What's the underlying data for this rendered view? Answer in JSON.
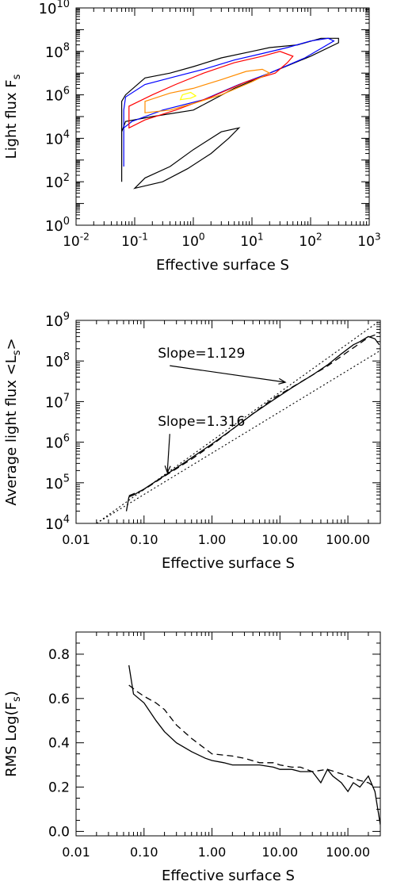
{
  "chart_data": [
    {
      "type": "contour",
      "xlabel": "Effective surface S",
      "ylabel": "Light flux F",
      "ylabel_sub": "s",
      "x_scale": "log",
      "y_scale": "log",
      "xlim": [
        0.01,
        1000
      ],
      "ylim": [
        1,
        10000000000
      ],
      "x_ticks": [
        {
          "v": 0.01,
          "base": "10",
          "exp": "-2"
        },
        {
          "v": 0.1,
          "base": "10",
          "exp": "-1"
        },
        {
          "v": 1,
          "base": "10",
          "exp": "0"
        },
        {
          "v": 10,
          "base": "10",
          "exp": "1"
        },
        {
          "v": 100,
          "base": "10",
          "exp": "2"
        },
        {
          "v": 1000,
          "base": "10",
          "exp": "3"
        }
      ],
      "y_ticks": [
        {
          "v": 1,
          "base": "10",
          "exp": "0"
        },
        {
          "v": 100,
          "base": "10",
          "exp": "2"
        },
        {
          "v": 10000,
          "base": "10",
          "exp": "4"
        },
        {
          "v": 1000000,
          "base": "10",
          "exp": "6"
        },
        {
          "v": 100000000,
          "base": "10",
          "exp": "8"
        },
        {
          "v": 10000000000,
          "base": "10",
          "exp": "10"
        }
      ],
      "contours": [
        {
          "level": "outer",
          "color": "#000000",
          "points": [
            [
              0.06,
              100
            ],
            [
              0.06,
              20000
            ],
            [
              0.07,
              60000
            ],
            [
              0.2,
              100000
            ],
            [
              1,
              200000
            ],
            [
              5,
              2000000
            ],
            [
              20,
              10000000
            ],
            [
              100,
              60000000
            ],
            [
              300,
              250000000
            ],
            [
              300,
              400000000
            ],
            [
              150,
              400000000
            ],
            [
              60,
              200000000
            ],
            [
              20,
              150000000
            ],
            [
              10,
              100000000
            ],
            [
              3,
              50000000
            ],
            [
              1,
              20000000
            ],
            [
              0.4,
              10000000
            ],
            [
              0.15,
              6000000
            ],
            [
              0.07,
              1000000
            ],
            [
              0.06,
              500000
            ]
          ]
        },
        {
          "level": "outer-noise",
          "color": "#000000",
          "points": [
            [
              0.1,
              50
            ],
            [
              0.3,
              100
            ],
            [
              0.8,
              400
            ],
            [
              2,
              2000
            ],
            [
              4,
              10000
            ],
            [
              6,
              30000
            ],
            [
              3,
              20000
            ],
            [
              1,
              3000
            ],
            [
              0.4,
              500
            ],
            [
              0.15,
              150
            ]
          ]
        },
        {
          "level": "mid",
          "color": "#0000ff",
          "points": [
            [
              0.065,
              500
            ],
            [
              0.065,
              30000
            ],
            [
              0.09,
              60000
            ],
            [
              0.3,
              200000
            ],
            [
              1.5,
              600000
            ],
            [
              6,
              3000000
            ],
            [
              20,
              10000000
            ],
            [
              80,
              50000000
            ],
            [
              250,
              300000000
            ],
            [
              200,
              400000000
            ],
            [
              100,
              300000000
            ],
            [
              40,
              150000000
            ],
            [
              15,
              80000000
            ],
            [
              5,
              40000000
            ],
            [
              1.5,
              15000000
            ],
            [
              0.5,
              7000000
            ],
            [
              0.15,
              3000000
            ],
            [
              0.07,
              800000
            ],
            [
              0.065,
              200000
            ]
          ]
        },
        {
          "level": "mid-inner",
          "color": "#ff0000",
          "points": [
            [
              0.08,
              30000
            ],
            [
              0.15,
              70000
            ],
            [
              0.5,
              200000
            ],
            [
              2,
              800000
            ],
            [
              8,
              4000000
            ],
            [
              25,
              10000000
            ],
            [
              40,
              30000000
            ],
            [
              50,
              60000000
            ],
            [
              30,
              100000000
            ],
            [
              15,
              60000000
            ],
            [
              5,
              30000000
            ],
            [
              1.5,
              10000000
            ],
            [
              0.5,
              3000000
            ],
            [
              0.2,
              1000000
            ],
            [
              0.08,
              300000
            ]
          ]
        },
        {
          "level": "core",
          "color": "#ff8c00",
          "points": [
            [
              0.15,
              150000
            ],
            [
              0.4,
              200000
            ],
            [
              1,
              400000
            ],
            [
              3,
              1000000
            ],
            [
              10,
              4000000
            ],
            [
              20,
              10000000
            ],
            [
              15,
              15000000
            ],
            [
              8,
              12000000
            ],
            [
              3,
              5000000
            ],
            [
              1,
              2000000
            ],
            [
              0.4,
              1200000
            ],
            [
              0.15,
              500000
            ]
          ]
        },
        {
          "level": "peak",
          "color": "#ffff00",
          "points": [
            [
              0.6,
              600000
            ],
            [
              0.9,
              700000
            ],
            [
              1.1,
              900000
            ],
            [
              0.9,
              1300000
            ],
            [
              0.65,
              1000000
            ]
          ]
        }
      ]
    },
    {
      "type": "line",
      "xlabel": "Effective surface S",
      "ylabel": "Average light flux <L",
      "ylabel_sub": "s",
      "ylabel_tail": ">",
      "x_scale": "log",
      "y_scale": "log",
      "xlim": [
        0.01,
        300
      ],
      "ylim": [
        10000,
        1000000000
      ],
      "x_ticks": [
        {
          "v": 0.01,
          "label": "0.01"
        },
        {
          "v": 0.1,
          "label": "0.10"
        },
        {
          "v": 1,
          "label": "1.00"
        },
        {
          "v": 10,
          "label": "10.00"
        },
        {
          "v": 100,
          "label": "100.00"
        }
      ],
      "y_ticks": [
        {
          "v": 10000,
          "base": "10",
          "exp": "4"
        },
        {
          "v": 100000,
          "base": "10",
          "exp": "5"
        },
        {
          "v": 1000000,
          "base": "10",
          "exp": "6"
        },
        {
          "v": 10000000,
          "base": "10",
          "exp": "7"
        },
        {
          "v": 100000000,
          "base": "10",
          "exp": "8"
        },
        {
          "v": 1000000000,
          "base": "10",
          "exp": "9"
        }
      ],
      "series": [
        {
          "style": "solid",
          "x": [
            0.055,
            0.06,
            0.07,
            0.1,
            0.2,
            0.4,
            1,
            2,
            4,
            8,
            15,
            30,
            50,
            80,
            120,
            150,
            200,
            250,
            290
          ],
          "y": [
            20000,
            45000,
            50000,
            70000,
            150000,
            320000,
            900000,
            2100000,
            5000000,
            11000000,
            22000000,
            45000000,
            80000000,
            150000000,
            250000000,
            300000000,
            400000000,
            350000000,
            250000000
          ]
        },
        {
          "style": "dashed",
          "x": [
            0.06,
            0.1,
            0.2,
            0.5,
            1,
            3,
            8,
            20,
            50,
            100,
            200,
            290
          ],
          "y": [
            48000,
            68000,
            145000,
            380000,
            850000,
            3500000,
            12000000,
            30000000,
            75000000,
            170000000,
            380000000,
            480000000
          ]
        },
        {
          "style": "dotted",
          "x": [
            0.02,
            300
          ],
          "y": [
            10000,
            1000000000
          ]
        },
        {
          "style": "dotted",
          "x": [
            0.02,
            300
          ],
          "y": [
            10000,
            180000000
          ]
        }
      ],
      "annotations": [
        {
          "text": "Slope=1.129",
          "x": 0.16,
          "y": 120000000,
          "arrow_to": [
            12,
            30000000
          ]
        },
        {
          "text": "Slope=1.316",
          "x": 0.16,
          "y": 2500000,
          "arrow_to": [
            0.22,
            180000
          ]
        }
      ]
    },
    {
      "type": "line",
      "xlabel": "Effective surface S",
      "ylabel": "RMS Log(F",
      "ylabel_sub": "s",
      "ylabel_tail": ")",
      "x_scale": "log",
      "y_scale": "linear",
      "xlim": [
        0.01,
        300
      ],
      "ylim": [
        -0.02,
        0.9
      ],
      "x_ticks": [
        {
          "v": 0.01,
          "label": "0.01"
        },
        {
          "v": 0.1,
          "label": "0.10"
        },
        {
          "v": 1,
          "label": "1.00"
        },
        {
          "v": 10,
          "label": "10.00"
        },
        {
          "v": 100,
          "label": "100.00"
        }
      ],
      "y_ticks": [
        {
          "v": 0,
          "label": "0.0"
        },
        {
          "v": 0.2,
          "label": "0.2"
        },
        {
          "v": 0.4,
          "label": "0.4"
        },
        {
          "v": 0.6,
          "label": "0.6"
        },
        {
          "v": 0.8,
          "label": "0.8"
        }
      ],
      "series": [
        {
          "style": "solid",
          "x": [
            0.06,
            0.07,
            0.1,
            0.15,
            0.2,
            0.3,
            0.5,
            0.8,
            1,
            1.5,
            2,
            3,
            5,
            8,
            10,
            15,
            20,
            30,
            40,
            50,
            60,
            80,
            100,
            120,
            150,
            200,
            250,
            300
          ],
          "y": [
            0.75,
            0.62,
            0.58,
            0.5,
            0.45,
            0.4,
            0.36,
            0.33,
            0.32,
            0.31,
            0.3,
            0.3,
            0.3,
            0.29,
            0.28,
            0.28,
            0.27,
            0.27,
            0.22,
            0.28,
            0.25,
            0.22,
            0.18,
            0.22,
            0.2,
            0.25,
            0.18,
            0.03
          ]
        },
        {
          "style": "dashed",
          "x": [
            0.06,
            0.08,
            0.1,
            0.15,
            0.2,
            0.3,
            0.5,
            1,
            2,
            3,
            5,
            8,
            10,
            15,
            20,
            30,
            50,
            80,
            100,
            120,
            150,
            200,
            250
          ],
          "y": [
            0.66,
            0.63,
            0.61,
            0.58,
            0.55,
            0.48,
            0.42,
            0.35,
            0.34,
            0.33,
            0.31,
            0.31,
            0.3,
            0.29,
            0.29,
            0.27,
            0.28,
            0.26,
            0.25,
            0.24,
            0.23,
            0.22,
            0.2
          ]
        }
      ]
    }
  ]
}
